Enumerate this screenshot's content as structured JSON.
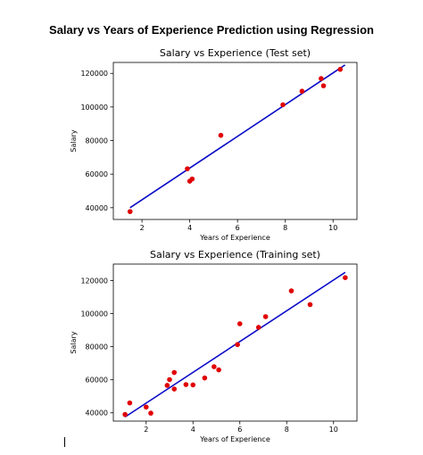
{
  "page": {
    "title": "Salary vs Years of Experience Prediction using Regression"
  },
  "colors": {
    "points": "#e00000",
    "line": "#0a0ac8",
    "axes": "#000000"
  },
  "chart_data": [
    {
      "type": "scatter",
      "title": "Salary vs Experience (Test set)",
      "xlabel": "Years of Experience",
      "ylabel": "Salary",
      "xlim": [
        0.8,
        11.0
      ],
      "ylim": [
        33000,
        126500
      ],
      "xticks": [
        2,
        4,
        6,
        8,
        10
      ],
      "yticks": [
        40000,
        60000,
        80000,
        100000,
        120000
      ],
      "grid": false,
      "series": [
        {
          "kind": "points",
          "x": [
            1.5,
            3.9,
            4.0,
            4.1,
            5.3,
            7.9,
            8.7,
            9.5,
            9.6,
            10.3
          ],
          "y": [
            37700,
            63200,
            55800,
            57100,
            83100,
            101300,
            109400,
            116900,
            112600,
            122400
          ]
        },
        {
          "kind": "regression-line",
          "x": [
            1.5,
            10.5
          ],
          "y": [
            40000,
            125000
          ]
        }
      ]
    },
    {
      "type": "scatter",
      "title": "Salary vs Experience (Training set)",
      "xlabel": "Years of Experience",
      "ylabel": "Salary",
      "xlim": [
        0.6,
        11.0
      ],
      "ylim": [
        35000,
        130000
      ],
      "xticks": [
        2,
        4,
        6,
        8,
        10
      ],
      "yticks": [
        40000,
        60000,
        80000,
        100000,
        120000
      ],
      "grid": false,
      "series": [
        {
          "kind": "points",
          "x": [
            1.1,
            1.3,
            2.0,
            2.2,
            2.9,
            3.0,
            3.2,
            3.2,
            3.7,
            4.0,
            4.5,
            4.9,
            5.1,
            5.9,
            6.0,
            6.8,
            7.1,
            8.2,
            9.0,
            10.5
          ],
          "y": [
            39000,
            46000,
            43500,
            39800,
            56600,
            60100,
            54400,
            64400,
            57100,
            56900,
            61100,
            67900,
            66000,
            81300,
            93900,
            91700,
            98200,
            113800,
            105500,
            121800
          ]
        },
        {
          "kind": "regression-line",
          "x": [
            1.1,
            10.5
          ],
          "y": [
            37500,
            125000
          ]
        }
      ]
    }
  ]
}
